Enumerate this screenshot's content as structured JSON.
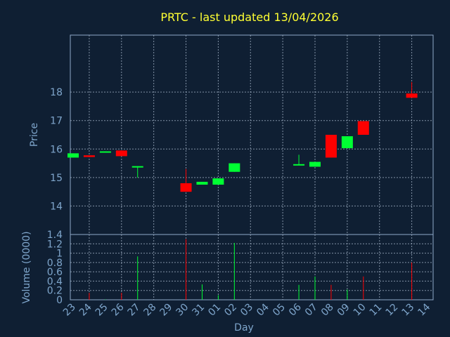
{
  "chart_data": {
    "type": "candlestick",
    "title": "PRTC - last updated 13/04/2026",
    "xlabel": "Day",
    "colors": {
      "up": "#00ff33",
      "down": "#ff0000",
      "title": "#ffff33",
      "text": "#7fa6cc",
      "background": "#0f1f33"
    },
    "days": [
      "23",
      "24",
      "25",
      "26",
      "27",
      "28",
      "29",
      "30",
      "31",
      "01",
      "02",
      "03",
      "04",
      "05",
      "06",
      "07",
      "08",
      "09",
      "10",
      "11",
      "12",
      "13",
      "14"
    ],
    "price_panel": {
      "ylabel": "Price",
      "ylim": [
        13,
        20
      ],
      "yticks": [
        "14",
        "15",
        "16",
        "17",
        "18"
      ],
      "ytick_values": [
        14,
        15,
        16,
        17,
        18
      ]
    },
    "volume_panel": {
      "ylabel": "Volume (0000)",
      "ylim": [
        0,
        1.4
      ],
      "yticks": [
        "0",
        "0.2",
        "0.4",
        "0.6",
        "0.8",
        "1",
        "1.2",
        "1.4"
      ],
      "ytick_values": [
        0,
        0.2,
        0.4,
        0.6,
        0.8,
        1.0,
        1.2,
        1.4
      ]
    },
    "candles": [
      {
        "day": 23,
        "open": 15.7,
        "close": 15.85,
        "high": 15.85,
        "low": 15.7,
        "volume": 0.0
      },
      {
        "day": 24,
        "open": 15.78,
        "close": 15.72,
        "high": 15.78,
        "low": 15.72,
        "volume": 0.15
      },
      {
        "day": 25,
        "open": 15.88,
        "close": 15.92,
        "high": 15.92,
        "low": 15.88,
        "volume": 0.01
      },
      {
        "day": 26,
        "open": 15.95,
        "close": 15.75,
        "high": 15.95,
        "low": 15.75,
        "volume": 0.15
      },
      {
        "day": 27,
        "open": 15.37,
        "close": 15.4,
        "high": 15.4,
        "low": 15.0,
        "volume": 0.93
      },
      {
        "day": 30,
        "open": 14.8,
        "close": 14.5,
        "high": 15.3,
        "low": 14.5,
        "volume": 1.3
      },
      {
        "day": 31,
        "open": 14.75,
        "close": 14.85,
        "high": 14.85,
        "low": 14.75,
        "volume": 0.33
      },
      {
        "day": 1,
        "open": 14.75,
        "close": 14.97,
        "high": 14.97,
        "low": 14.75,
        "volume": 0.1
      },
      {
        "day": 2,
        "open": 15.2,
        "close": 15.5,
        "high": 15.5,
        "low": 15.2,
        "volume": 1.22
      },
      {
        "day": 6,
        "open": 15.45,
        "close": 15.47,
        "high": 15.8,
        "low": 15.45,
        "volume": 0.32
      },
      {
        "day": 7,
        "open": 15.38,
        "close": 15.55,
        "high": 15.55,
        "low": 15.38,
        "volume": 0.5
      },
      {
        "day": 8,
        "open": 16.5,
        "close": 15.7,
        "high": 16.5,
        "low": 15.7,
        "volume": 0.32
      },
      {
        "day": 9,
        "open": 16.03,
        "close": 16.45,
        "high": 16.45,
        "low": 16.03,
        "volume": 0.22
      },
      {
        "day": 10,
        "open": 16.98,
        "close": 16.5,
        "high": 16.98,
        "low": 16.5,
        "volume": 0.5
      },
      {
        "day": 13,
        "open": 17.95,
        "close": 17.8,
        "high": 18.35,
        "low": 17.8,
        "volume": 0.8
      }
    ]
  }
}
